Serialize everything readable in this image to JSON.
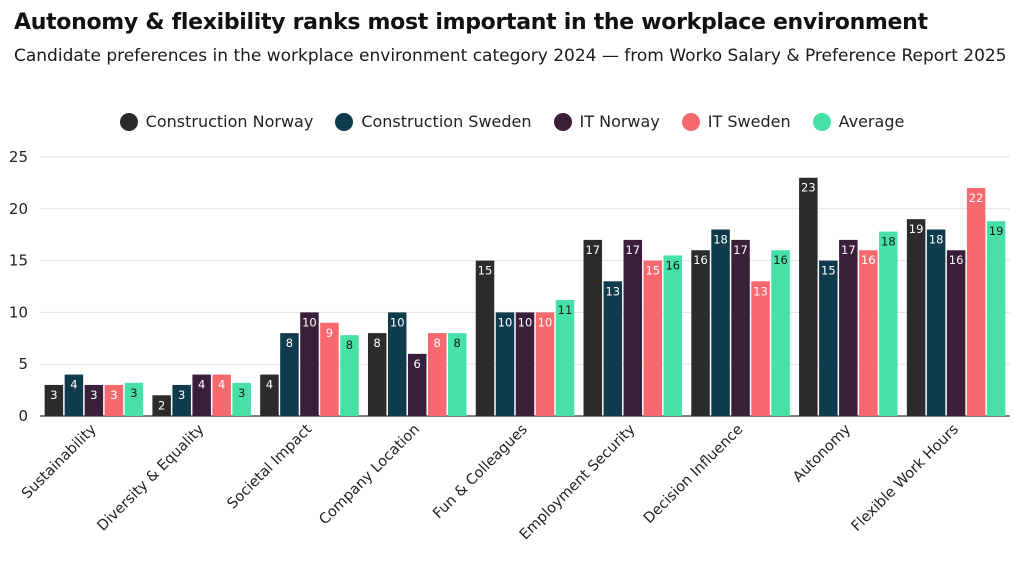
{
  "header": {
    "title": "Autonomy & flexibility ranks most important in the workplace environment",
    "subtitle": "Candidate preferences in the workplace environment category 2024 — from Worko Salary & Preference Report 2025"
  },
  "chart_data": {
    "type": "bar",
    "title": "Autonomy & flexibility ranks most important in the workplace environment",
    "subtitle": "Candidate preferences in the workplace environment category 2024 — from Worko Salary & Preference Report 2025",
    "xlabel": "",
    "ylabel": "",
    "ylim": [
      0,
      25
    ],
    "yticks": [
      0,
      5,
      10,
      15,
      20,
      25
    ],
    "grid": true,
    "legend_position": "top-center",
    "categories": [
      "Sustainability",
      "Diversity & Equality",
      "Societal Impact",
      "Company Location",
      "Fun & Colleagues",
      "Employment Security",
      "Decision Influence",
      "Autonomy",
      "Flexible Work Hours"
    ],
    "series": [
      {
        "name": "Construction Norway",
        "color": "#2b2b2b",
        "label_color": "#ffffff",
        "values": [
          3,
          2,
          4,
          8,
          15,
          17,
          16,
          23,
          19
        ],
        "labels": [
          "3",
          "2",
          "4",
          "8",
          "15",
          "17",
          "16",
          "23",
          "19"
        ]
      },
      {
        "name": "Construction Sweden",
        "color": "#0f3b4c",
        "label_color": "#ffffff",
        "values": [
          4,
          3,
          8,
          10,
          10,
          13,
          18,
          15,
          18
        ],
        "labels": [
          "4",
          "3",
          "8",
          "10",
          "10",
          "13",
          "18",
          "15",
          "18"
        ]
      },
      {
        "name": "IT Norway",
        "color": "#3a1f3a",
        "label_color": "#ffffff",
        "values": [
          3,
          4,
          10,
          6,
          10,
          17,
          17,
          17,
          16
        ],
        "labels": [
          "3",
          "4",
          "10",
          "6",
          "10",
          "17",
          "17",
          "17",
          "16"
        ]
      },
      {
        "name": "IT Sweden",
        "color": "#f7686f",
        "label_color": "#ffffff",
        "values": [
          3,
          4,
          9,
          8,
          10,
          15,
          13,
          16,
          22
        ],
        "labels": [
          "3",
          "4",
          "9",
          "8",
          "10",
          "15",
          "13",
          "16",
          "22"
        ]
      },
      {
        "name": "Average",
        "color": "#46e0a8",
        "label_color": "#1a1a1a",
        "values": [
          3.2,
          3.2,
          7.8,
          8,
          11.2,
          15.5,
          16,
          17.8,
          18.8
        ],
        "labels": [
          "3",
          "3",
          "8",
          "8",
          "11",
          "16",
          "16",
          "18",
          "19"
        ]
      }
    ]
  }
}
